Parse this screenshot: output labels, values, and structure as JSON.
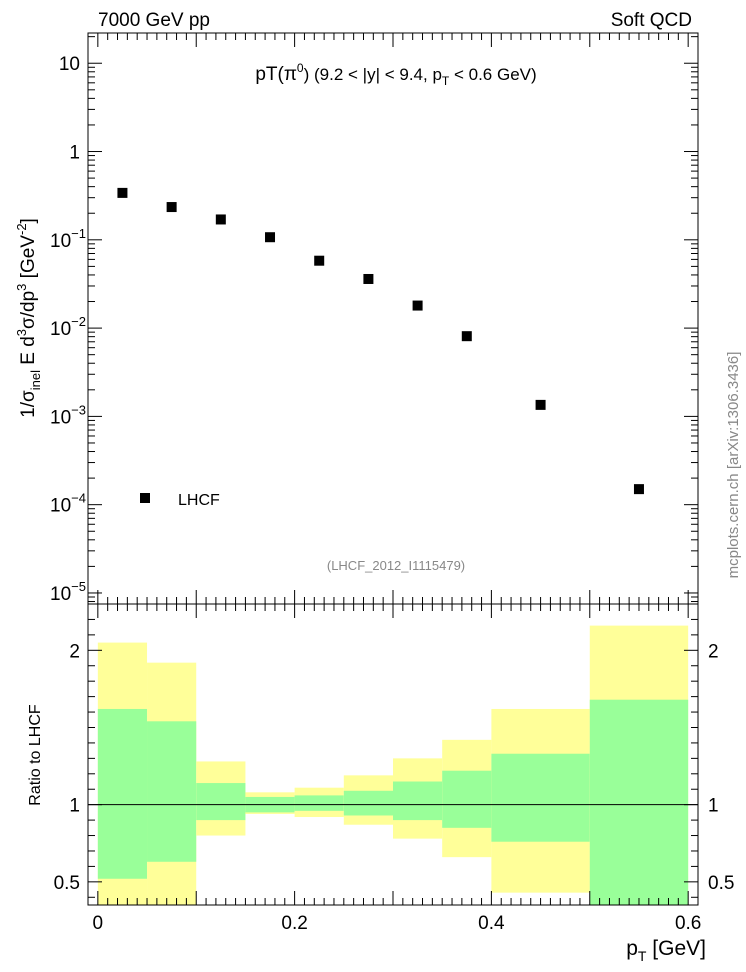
{
  "header": {
    "left": "7000 GeV pp",
    "right": "Soft QCD"
  },
  "side_label": "mcplots.cern.ch [arXiv:1306.3436]",
  "chart_data": [
    {
      "type": "scatter",
      "title_main": "pT(π",
      "title_sup": "0",
      "title_rest": ") (9.2 < |y| < 9.4, p",
      "title_sub": "T",
      "title_end": " < 0.6 GeV)",
      "ylabel": "1/σ_inel E d³σ/dp³ [GeV⁻²]",
      "ylabel_parts": {
        "a": "1/σ",
        "b": "inel",
        "c": " E d",
        "d": "3",
        "e": "σ/dp",
        "f": "3",
        "g": " [GeV",
        "h": "-2",
        "i": "]"
      },
      "yscale": "log",
      "ylim": [
        7.5e-06,
        22
      ],
      "xlim": [
        -0.01,
        0.61
      ],
      "y_ticks": [
        {
          "value": 10,
          "base": "10",
          "exp": ""
        },
        {
          "value": 1,
          "base": "1",
          "exp": ""
        },
        {
          "value": 0.1,
          "base": "10",
          "exp": "−1"
        },
        {
          "value": 0.01,
          "base": "10",
          "exp": "−2"
        },
        {
          "value": 0.001,
          "base": "10",
          "exp": "−3"
        },
        {
          "value": 0.0001,
          "base": "10",
          "exp": "−4"
        },
        {
          "value": 1e-05,
          "base": "10",
          "exp": "−5"
        }
      ],
      "series": [
        {
          "name": "LHCF",
          "marker": "square",
          "color": "#000000",
          "x": [
            0.025,
            0.075,
            0.125,
            0.175,
            0.225,
            0.275,
            0.325,
            0.375,
            0.45,
            0.55
          ],
          "y": [
            0.34,
            0.235,
            0.17,
            0.107,
            0.058,
            0.036,
            0.018,
            0.0081,
            0.00135,
            0.00015
          ]
        }
      ],
      "legend": {
        "label": "LHCF",
        "placement": "bottom-left"
      },
      "analysis_label": "(LHCF_2012_I1115479)"
    },
    {
      "type": "area",
      "ylabel": "Ratio to LHCF",
      "xlabel_main": "p",
      "xlabel_sub": "T",
      "xlabel_unit": " [GeV]",
      "xlim": [
        -0.01,
        0.61
      ],
      "ylim": [
        0.35,
        2.3
      ],
      "x_ticks": [
        {
          "value": 0,
          "label": "0"
        },
        {
          "value": 0.2,
          "label": "0.2"
        },
        {
          "value": 0.4,
          "label": "0.4"
        },
        {
          "value": 0.6,
          "label": "0.6"
        }
      ],
      "y_ticks": [
        {
          "value": 2,
          "label": "2"
        },
        {
          "value": 1,
          "label": "1"
        },
        {
          "value": 0.5,
          "label": "0.5"
        }
      ],
      "reference_line": 1,
      "bins": [
        {
          "lo": 0.0,
          "hi": 0.05,
          "stat_lo": 0.52,
          "stat_hi": 1.62,
          "total_lo": 0.35,
          "total_hi": 2.05
        },
        {
          "lo": 0.05,
          "hi": 0.1,
          "stat_lo": 0.63,
          "stat_hi": 1.54,
          "total_lo": 0.35,
          "total_hi": 1.92
        },
        {
          "lo": 0.1,
          "hi": 0.15,
          "stat_lo": 0.9,
          "stat_hi": 1.14,
          "total_lo": 0.8,
          "total_hi": 1.28
        },
        {
          "lo": 0.15,
          "hi": 0.2,
          "stat_lo": 0.95,
          "stat_hi": 1.05,
          "total_lo": 0.94,
          "total_hi": 1.08
        },
        {
          "lo": 0.2,
          "hi": 0.25,
          "stat_lo": 0.96,
          "stat_hi": 1.06,
          "total_lo": 0.92,
          "total_hi": 1.11
        },
        {
          "lo": 0.25,
          "hi": 0.3,
          "stat_lo": 0.93,
          "stat_hi": 1.09,
          "total_lo": 0.87,
          "total_hi": 1.19
        },
        {
          "lo": 0.3,
          "hi": 0.35,
          "stat_lo": 0.9,
          "stat_hi": 1.15,
          "total_lo": 0.78,
          "total_hi": 1.3
        },
        {
          "lo": 0.35,
          "hi": 0.4,
          "stat_lo": 0.85,
          "stat_hi": 1.22,
          "total_lo": 0.66,
          "total_hi": 1.42
        },
        {
          "lo": 0.4,
          "hi": 0.5,
          "stat_lo": 0.76,
          "stat_hi": 1.33,
          "total_lo": 0.43,
          "total_hi": 1.62
        },
        {
          "lo": 0.5,
          "hi": 0.6,
          "stat_lo": 0.35,
          "stat_hi": 1.68,
          "total_lo": 0.35,
          "total_hi": 2.16
        }
      ],
      "colors": {
        "stat": "#99ff99",
        "total": "#ffff99"
      }
    }
  ]
}
